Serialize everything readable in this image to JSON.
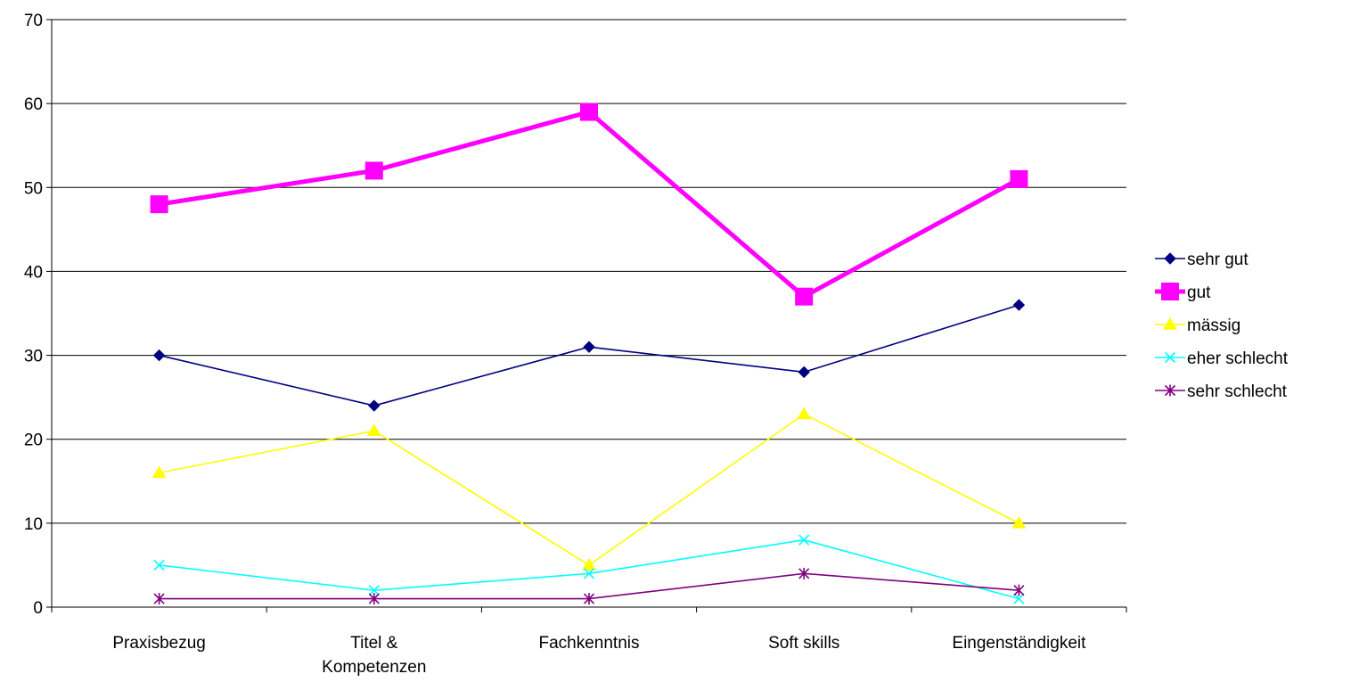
{
  "chart_data": {
    "type": "line",
    "title": "",
    "xlabel": "",
    "ylabel": "",
    "categories": [
      [
        "Praxisbezug"
      ],
      [
        "Titel &",
        "Kompetenzen"
      ],
      [
        "Fachkenntnis"
      ],
      [
        "Soft skills"
      ],
      [
        "Eingenständigkeit"
      ]
    ],
    "ylim": [
      0,
      70
    ],
    "yticks": [
      "0",
      "10",
      "20",
      "30",
      "40",
      "50",
      "60",
      "70"
    ],
    "grid": true,
    "legend_position": "right",
    "series": [
      {
        "name": "sehr gut",
        "values": [
          30,
          24,
          31,
          28,
          36
        ],
        "color": "#000080",
        "marker": "diamond"
      },
      {
        "name": "gut",
        "values": [
          48,
          52,
          59,
          37,
          51
        ],
        "color": "#ff00ff",
        "marker": "square"
      },
      {
        "name": "mässig",
        "values": [
          16,
          21,
          5,
          23,
          10
        ],
        "color": "#ffff00",
        "marker": "triangle"
      },
      {
        "name": "eher schlecht",
        "values": [
          5,
          2,
          4,
          8,
          1
        ],
        "color": "#00ffff",
        "marker": "x"
      },
      {
        "name": "sehr schlecht",
        "values": [
          1,
          1,
          1,
          4,
          2
        ],
        "color": "#800080",
        "marker": "star"
      }
    ]
  }
}
